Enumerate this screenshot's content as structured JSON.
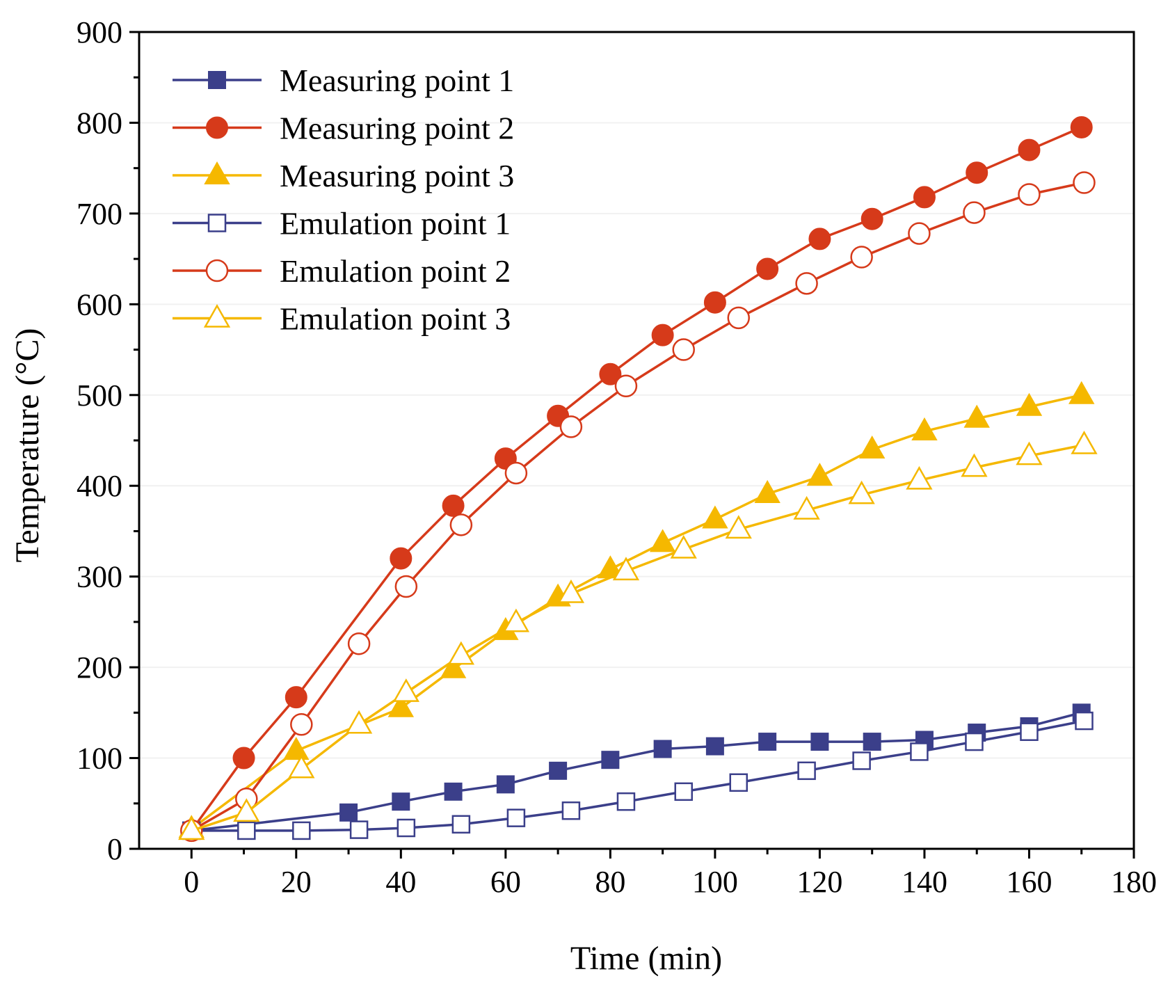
{
  "chart_data": {
    "type": "line",
    "title": "",
    "xlabel": "Time (min)",
    "ylabel": "Temperature (°C)",
    "xlim": [
      -10,
      180
    ],
    "ylim": [
      0,
      900
    ],
    "xticks": [
      0,
      20,
      40,
      60,
      80,
      100,
      120,
      140,
      160,
      180
    ],
    "yticks": [
      0,
      100,
      200,
      300,
      400,
      500,
      600,
      700,
      800,
      900
    ],
    "legend_position": "top-left",
    "series": [
      {
        "name": "Measuring point 1",
        "color": "#3b3f8a",
        "marker": "square",
        "filled": true,
        "x": [
          0,
          30,
          40,
          50,
          60,
          70,
          80,
          90,
          100,
          110,
          120,
          130,
          140,
          150,
          160,
          170
        ],
        "y": [
          20,
          40,
          52,
          63,
          71,
          86,
          98,
          110,
          113,
          118,
          118,
          118,
          120,
          128,
          135,
          150
        ]
      },
      {
        "name": "Measuring point 2",
        "color": "#d63a1a",
        "marker": "circle",
        "filled": true,
        "x": [
          0,
          10,
          20,
          40,
          50,
          60,
          70,
          80,
          90,
          100,
          110,
          120,
          130,
          140,
          150,
          160,
          170
        ],
        "y": [
          20,
          100,
          167,
          320,
          378,
          430,
          477,
          523,
          566,
          602,
          639,
          672,
          694,
          718,
          745,
          770,
          795
        ]
      },
      {
        "name": "Measuring point 3",
        "color": "#f5b800",
        "marker": "triangle",
        "filled": true,
        "x": [
          0,
          20,
          40,
          50,
          60,
          70,
          80,
          90,
          100,
          110,
          120,
          130,
          140,
          150,
          160,
          170
        ],
        "y": [
          22,
          108,
          155,
          198,
          240,
          277,
          308,
          337,
          363,
          391,
          410,
          440,
          460,
          474,
          487,
          500
        ]
      },
      {
        "name": "Emulation point 1",
        "color": "#3b3f8a",
        "marker": "square",
        "filled": false,
        "x": [
          0,
          10.5,
          21,
          32,
          41,
          51.5,
          62,
          72.5,
          83,
          94,
          104.5,
          117.5,
          128,
          139,
          149.5,
          160,
          170.5
        ],
        "y": [
          20,
          20,
          20,
          21,
          23,
          27,
          34,
          42,
          52,
          63,
          73,
          86,
          97,
          107,
          118,
          129,
          141
        ]
      },
      {
        "name": "Emulation point 2",
        "color": "#d63a1a",
        "marker": "circle",
        "filled": false,
        "x": [
          0,
          10.5,
          21,
          32,
          41,
          51.5,
          62,
          72.5,
          83,
          94,
          104.5,
          117.5,
          128,
          139,
          149.5,
          160,
          170.5
        ],
        "y": [
          20,
          55,
          137,
          226,
          289,
          357,
          414,
          465,
          510,
          550,
          585,
          623,
          652,
          678,
          701,
          721,
          734
        ]
      },
      {
        "name": "Emulation point 3",
        "color": "#f5b800",
        "marker": "triangle",
        "filled": false,
        "x": [
          0,
          10.5,
          21,
          32,
          41,
          51.5,
          62,
          72.5,
          83,
          94,
          104.5,
          117.5,
          128,
          139,
          149.5,
          160,
          170.5
        ],
        "y": [
          20,
          40,
          88,
          137,
          172,
          213,
          249,
          281,
          306,
          330,
          352,
          373,
          390,
          406,
          420,
          433,
          445
        ]
      }
    ]
  }
}
